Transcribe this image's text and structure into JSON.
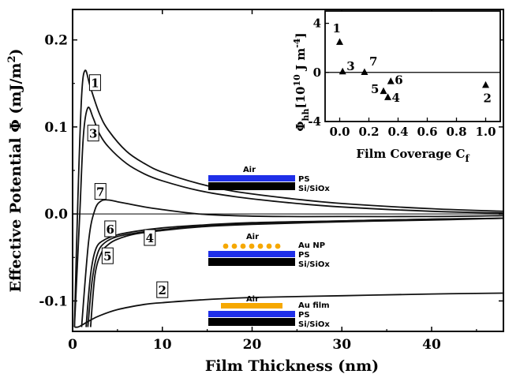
{
  "chart_data": [
    {
      "type": "line",
      "title": "",
      "xlabel": "Film Thickness (nm)",
      "ylabel": "Effective Potential Φ (mJ/m²)",
      "ylabel_prefix": "Effective Potential Φ  (mJ/m",
      "ylabel_sup": "2",
      "ylabel_suffix": ")",
      "xlim": [
        0,
        48
      ],
      "ylim": [
        -0.135,
        0.235
      ],
      "xticks": [
        0,
        10,
        20,
        30,
        40
      ],
      "xtick_labels": [
        "0",
        "10",
        "20",
        "30",
        "40"
      ],
      "yticks": [
        -0.1,
        0.0,
        0.1,
        0.2
      ],
      "ytick_labels": [
        "-0.1",
        "0.0",
        "0.1",
        "0.2"
      ],
      "grid": false,
      "series": [
        {
          "name": "1",
          "x": [
            0.2,
            0.6,
            1.0,
            1.4,
            2.0,
            3.0,
            4.0,
            6.0,
            8.0,
            10.0,
            14.0,
            18.0,
            24.0,
            30.0,
            40.0,
            48.0
          ],
          "y": [
            -0.13,
            0.02,
            0.135,
            0.165,
            0.145,
            0.115,
            0.096,
            0.072,
            0.058,
            0.048,
            0.035,
            0.026,
            0.018,
            0.012,
            0.006,
            0.003
          ]
        },
        {
          "name": "3",
          "x": [
            0.2,
            0.8,
            1.2,
            1.7,
            2.3,
            3.0,
            4.0,
            6.0,
            8.0,
            10.0,
            14.0,
            18.0,
            24.0,
            30.0,
            40.0,
            48.0
          ],
          "y": [
            -0.13,
            0.0,
            0.09,
            0.122,
            0.11,
            0.092,
            0.077,
            0.058,
            0.046,
            0.038,
            0.027,
            0.02,
            0.013,
            0.008,
            0.003,
            0.001
          ]
        },
        {
          "name": "7",
          "x": [
            1.0,
            1.8,
            2.5,
            3.2,
            4.0,
            5.0,
            6.0,
            8.0,
            10.0,
            14.0,
            18.0,
            24.0,
            30.0,
            40.0,
            48.0
          ],
          "y": [
            -0.13,
            -0.03,
            0.005,
            0.015,
            0.016,
            0.014,
            0.012,
            0.008,
            0.005,
            0.0,
            -0.002,
            -0.003,
            -0.003,
            -0.003,
            -0.002
          ]
        },
        {
          "name": "6",
          "x": [
            1.5,
            2.0,
            2.6,
            3.5,
            5.0,
            7.0,
            10.0,
            14.0,
            20.0,
            30.0,
            40.0,
            48.0
          ],
          "y": [
            -0.13,
            -0.07,
            -0.04,
            -0.03,
            -0.024,
            -0.02,
            -0.016,
            -0.013,
            -0.01,
            -0.008,
            -0.006,
            -0.005
          ]
        },
        {
          "name": "5",
          "x": [
            1.7,
            2.2,
            2.8,
            3.6,
            5.0,
            7.0,
            10.0,
            14.0,
            20.0,
            30.0,
            40.0,
            48.0
          ],
          "y": [
            -0.13,
            -0.075,
            -0.045,
            -0.033,
            -0.026,
            -0.022,
            -0.018,
            -0.014,
            -0.011,
            -0.008,
            -0.006,
            -0.005
          ]
        },
        {
          "name": "4",
          "x": [
            2.0,
            2.5,
            3.2,
            4.0,
            5.0,
            7.0,
            10.0,
            14.0,
            20.0,
            30.0,
            40.0,
            48.0
          ],
          "y": [
            -0.13,
            -0.07,
            -0.045,
            -0.035,
            -0.029,
            -0.023,
            -0.019,
            -0.015,
            -0.012,
            -0.009,
            -0.007,
            -0.005
          ]
        },
        {
          "name": "2",
          "x": [
            0.2,
            0.6,
            1.0,
            2.0,
            3.0,
            5.0,
            8.0,
            10.0,
            14.0,
            20.0,
            30.0,
            40.0,
            48.0
          ],
          "y": [
            -0.13,
            -0.13,
            -0.128,
            -0.122,
            -0.117,
            -0.11,
            -0.104,
            -0.102,
            -0.099,
            -0.096,
            -0.094,
            -0.092,
            -0.091
          ]
        }
      ],
      "curve_labels": [
        {
          "text": "1",
          "x": 2.5,
          "y": 0.15
        },
        {
          "text": "3",
          "x": 2.3,
          "y": 0.092
        },
        {
          "text": "7",
          "x": 3.1,
          "y": 0.025
        },
        {
          "text": "6",
          "x": 4.2,
          "y": -0.018
        },
        {
          "text": "5",
          "x": 3.9,
          "y": -0.049
        },
        {
          "text": "4",
          "x": 8.6,
          "y": -0.028
        },
        {
          "text": "2",
          "x": 10.0,
          "y": -0.088
        }
      ],
      "schematics": [
        {
          "labels": [
            "Air",
            "PS",
            "Si/SiOx"
          ]
        },
        {
          "labels": [
            "Air",
            "Au NP",
            "PS",
            "Si/SiOx"
          ]
        },
        {
          "labels": [
            "Air",
            "Au film",
            "PS",
            "Si/SiOx"
          ]
        }
      ]
    },
    {
      "type": "scatter",
      "title": "",
      "xlabel_prefix": "Film Coverage C",
      "xlabel_sub": "f",
      "ylabel_main": "Φ",
      "ylabel_sub": "hh",
      "ylabel_unit_prefix": "[10",
      "ylabel_unit_sup": "10",
      "ylabel_unit_mid": " J m",
      "ylabel_unit_sup2": "-4",
      "ylabel_unit_suffix": "]",
      "xlim": [
        -0.1,
        1.1
      ],
      "ylim": [
        -4,
        5
      ],
      "xticks": [
        0.0,
        0.2,
        0.4,
        0.6,
        0.8,
        1.0
      ],
      "xtick_labels": [
        "0.0",
        "0.2",
        "0.4",
        "0.6",
        "0.8",
        "1.0"
      ],
      "yticks": [
        -4,
        0,
        4
      ],
      "ytick_labels": [
        "-4",
        "0",
        "4"
      ],
      "grid": false,
      "points": [
        {
          "label": "1",
          "x": 0.0,
          "y": 2.5
        },
        {
          "label": "3",
          "x": 0.02,
          "y": 0.1
        },
        {
          "label": "7",
          "x": 0.17,
          "y": 0.05
        },
        {
          "label": "6",
          "x": 0.35,
          "y": -0.7
        },
        {
          "label": "5",
          "x": 0.3,
          "y": -1.5
        },
        {
          "label": "4",
          "x": 0.33,
          "y": -2.0
        },
        {
          "label": "2",
          "x": 1.0,
          "y": -1.0
        }
      ]
    }
  ],
  "colors": {
    "substrate": "#000000",
    "polymer": "#1f2fe8",
    "gold": "#f6a800"
  }
}
